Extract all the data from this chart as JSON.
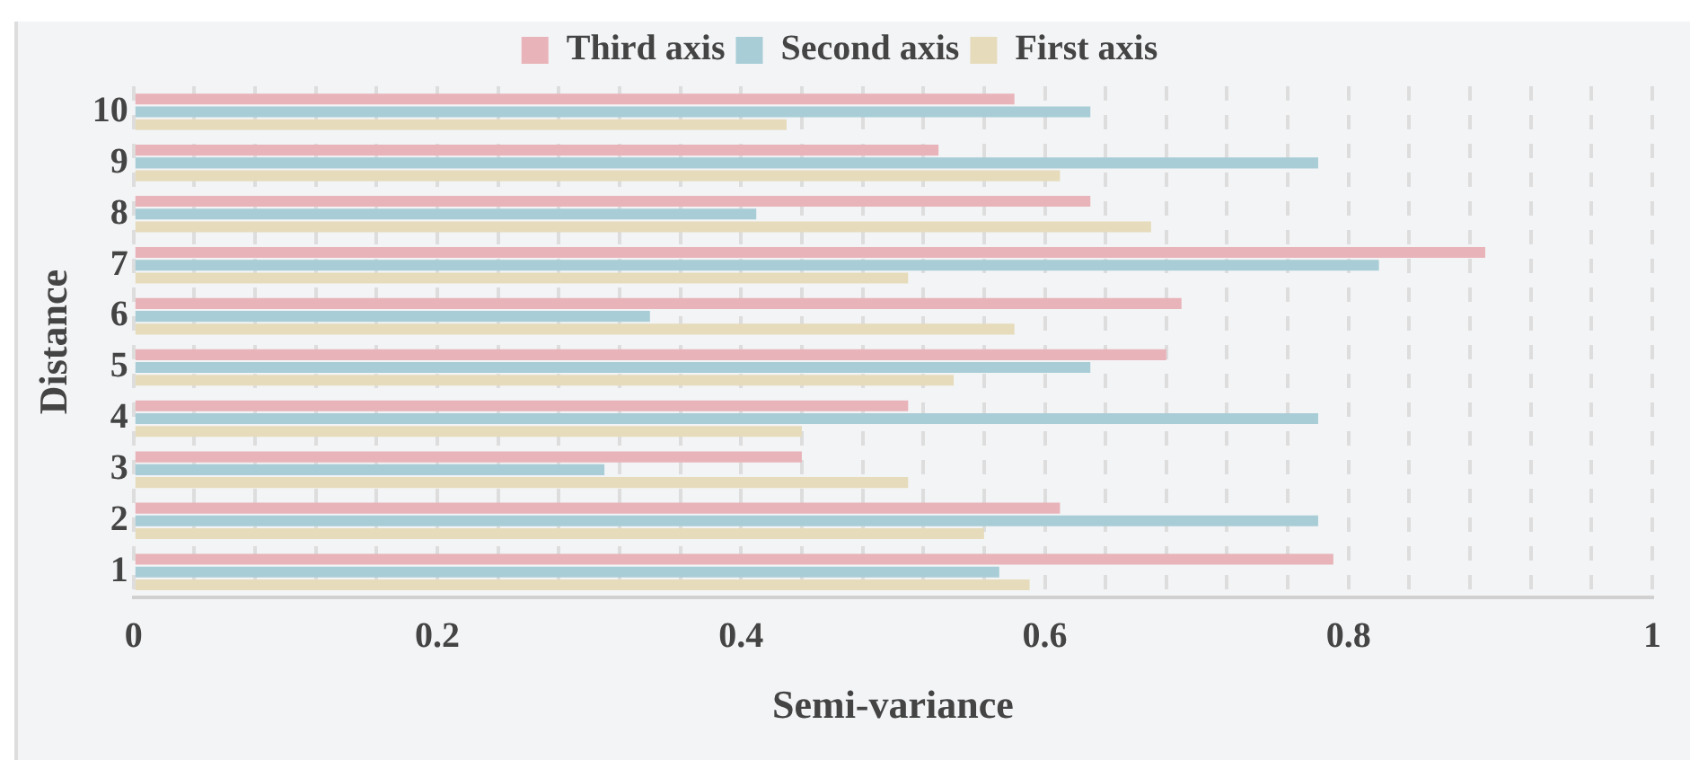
{
  "chart_data": {
    "type": "bar",
    "orientation": "horizontal",
    "xlabel": "Semi-variance",
    "ylabel": "Distance",
    "categories": [
      "10",
      "9",
      "8",
      "7",
      "6",
      "5",
      "4",
      "3",
      "2",
      "1"
    ],
    "series": [
      {
        "name": "Third axis",
        "color": "#e8b4ba",
        "values": [
          0.58,
          0.53,
          0.63,
          0.89,
          0.69,
          0.68,
          0.51,
          0.44,
          0.61,
          0.79
        ]
      },
      {
        "name": "Second axis",
        "color": "#a8cdd6",
        "values": [
          0.63,
          0.78,
          0.41,
          0.82,
          0.34,
          0.63,
          0.78,
          0.31,
          0.78,
          0.57
        ]
      },
      {
        "name": "First axis",
        "color": "#e6dcbc",
        "values": [
          0.43,
          0.61,
          0.67,
          0.51,
          0.58,
          0.54,
          0.44,
          0.51,
          0.56,
          0.59
        ]
      }
    ],
    "xlim": [
      0,
      1
    ],
    "xticks": [
      0,
      {
        "value": 0.04,
        "label": null
      },
      {
        "value": 0.08,
        "label": null
      },
      {
        "value": 0.12,
        "label": null
      },
      {
        "value": 0.16,
        "label": null
      },
      0.2,
      {
        "value": 0.24,
        "label": null
      },
      {
        "value": 0.28,
        "label": null
      },
      {
        "value": 0.32,
        "label": null
      },
      {
        "value": 0.36,
        "label": null
      },
      0.4,
      {
        "value": 0.44,
        "label": null
      },
      {
        "value": 0.48,
        "label": null
      },
      {
        "value": 0.52,
        "label": null
      },
      {
        "value": 0.56,
        "label": null
      },
      0.6,
      {
        "value": 0.64,
        "label": null
      },
      {
        "value": 0.68,
        "label": null
      },
      {
        "value": 0.72,
        "label": null
      },
      {
        "value": 0.76,
        "label": null
      },
      0.8,
      {
        "value": 0.84,
        "label": null
      },
      {
        "value": 0.88,
        "label": null
      },
      {
        "value": 0.92,
        "label": null
      },
      {
        "value": 0.96,
        "label": null
      },
      1
    ],
    "grid": "x",
    "legend": "top"
  }
}
